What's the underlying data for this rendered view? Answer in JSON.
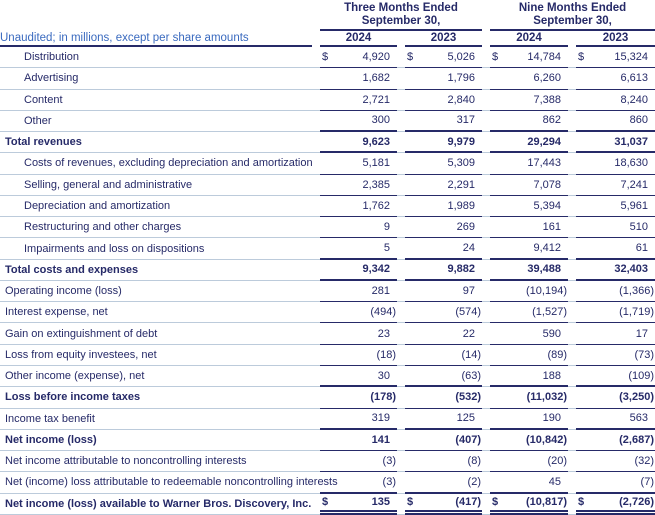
{
  "currency_symbol": "$",
  "colors": {
    "navy": "#262a68",
    "unaudited_blue": "#3a6abf",
    "light_line": "#bccbdb",
    "background": "#ffffff"
  },
  "header": {
    "unaudited_label": "Unaudited; in millions, except per share amounts",
    "groups": [
      {
        "title": "Three Months Ended",
        "subtitle": "September 30,",
        "years": [
          "2024",
          "2023"
        ]
      },
      {
        "title": "Nine Months Ended",
        "subtitle": "September 30,",
        "years": [
          "2024",
          "2023"
        ]
      }
    ]
  },
  "rows": [
    {
      "label": "Distribution",
      "indent": true,
      "bold": false,
      "dollar": true,
      "rule": "normal",
      "values": [
        "4,920",
        "5,026",
        "14,784",
        "15,324"
      ]
    },
    {
      "label": "Advertising",
      "indent": true,
      "bold": false,
      "dollar": false,
      "rule": "normal",
      "values": [
        "1,682",
        "1,796",
        "6,260",
        "6,613"
      ]
    },
    {
      "label": "Content",
      "indent": true,
      "bold": false,
      "dollar": false,
      "rule": "normal",
      "values": [
        "2,721",
        "2,840",
        "7,388",
        "8,240"
      ]
    },
    {
      "label": "Other",
      "indent": true,
      "bold": false,
      "dollar": false,
      "rule": "thick",
      "values": [
        "300",
        "317",
        "862",
        "860"
      ]
    },
    {
      "label": "Total revenues",
      "indent": false,
      "bold": true,
      "dollar": false,
      "rule": "thick",
      "values": [
        "9,623",
        "9,979",
        "29,294",
        "31,037"
      ]
    },
    {
      "label": "Costs of revenues, excluding depreciation and amortization",
      "indent": true,
      "bold": false,
      "dollar": false,
      "rule": "normal",
      "values": [
        "5,181",
        "5,309",
        "17,443",
        "18,630"
      ]
    },
    {
      "label": "Selling, general and administrative",
      "indent": true,
      "bold": false,
      "dollar": false,
      "rule": "normal",
      "values": [
        "2,385",
        "2,291",
        "7,078",
        "7,241"
      ]
    },
    {
      "label": "Depreciation and amortization",
      "indent": true,
      "bold": false,
      "dollar": false,
      "rule": "normal",
      "values": [
        "1,762",
        "1,989",
        "5,394",
        "5,961"
      ]
    },
    {
      "label": "Restructuring and other charges",
      "indent": true,
      "bold": false,
      "dollar": false,
      "rule": "normal",
      "values": [
        "9",
        "269",
        "161",
        "510"
      ]
    },
    {
      "label": "Impairments and loss on dispositions",
      "indent": true,
      "bold": false,
      "dollar": false,
      "rule": "thick",
      "values": [
        "5",
        "24",
        "9,412",
        "61"
      ]
    },
    {
      "label": "Total costs and expenses",
      "indent": false,
      "bold": true,
      "dollar": false,
      "rule": "thick",
      "values": [
        "9,342",
        "9,882",
        "39,488",
        "32,403"
      ]
    },
    {
      "label": "Operating income (loss)",
      "indent": false,
      "bold": false,
      "dollar": false,
      "rule": "normal",
      "values": [
        "281",
        "97",
        "(10,194)",
        "(1,366)"
      ]
    },
    {
      "label": "Interest expense, net",
      "indent": false,
      "bold": false,
      "dollar": false,
      "rule": "normal",
      "values": [
        "(494)",
        "(574)",
        "(1,527)",
        "(1,719)"
      ]
    },
    {
      "label": "Gain on extinguishment of debt",
      "indent": false,
      "bold": false,
      "dollar": false,
      "rule": "normal",
      "values": [
        "23",
        "22",
        "590",
        "17"
      ]
    },
    {
      "label": "Loss from equity investees, net",
      "indent": false,
      "bold": false,
      "dollar": false,
      "rule": "normal",
      "values": [
        "(18)",
        "(14)",
        "(89)",
        "(73)"
      ]
    },
    {
      "label": "Other income (expense), net",
      "indent": false,
      "bold": false,
      "dollar": false,
      "rule": "thick",
      "values": [
        "30",
        "(63)",
        "188",
        "(109)"
      ]
    },
    {
      "label": "Loss before income taxes",
      "indent": false,
      "bold": true,
      "dollar": false,
      "rule": "normal",
      "values": [
        "(178)",
        "(532)",
        "(11,032)",
        "(3,250)"
      ]
    },
    {
      "label": "Income tax benefit",
      "indent": false,
      "bold": false,
      "dollar": false,
      "rule": "thick",
      "values": [
        "319",
        "125",
        "190",
        "563"
      ]
    },
    {
      "label": "Net income (loss)",
      "indent": false,
      "bold": true,
      "dollar": false,
      "rule": "normal",
      "values": [
        "141",
        "(407)",
        "(10,842)",
        "(2,687)"
      ]
    },
    {
      "label": "Net income attributable to noncontrolling interests",
      "indent": false,
      "bold": false,
      "dollar": false,
      "rule": "normal",
      "values": [
        "(3)",
        "(8)",
        "(20)",
        "(32)"
      ]
    },
    {
      "label": "Net (income) loss attributable to redeemable noncontrolling interests",
      "indent": false,
      "bold": false,
      "dollar": false,
      "rule": "thick",
      "values": [
        "(3)",
        "(2)",
        "45",
        "(7)"
      ]
    },
    {
      "label": "Net income (loss) available to Warner Bros. Discovery, Inc.",
      "indent": false,
      "bold": true,
      "dollar": true,
      "rule": "double",
      "values": [
        "135",
        "(417)",
        "(10,817)",
        "(2,726)"
      ]
    }
  ]
}
